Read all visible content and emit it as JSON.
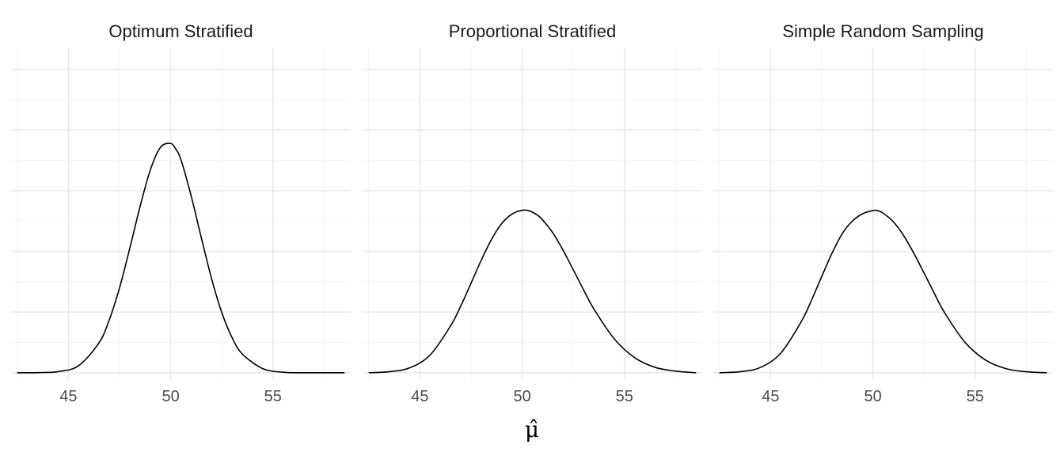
{
  "chart_data": {
    "type": "line",
    "facets": "horizontal",
    "xlabel": "μ̂",
    "x_ticks": [
      45,
      50,
      55
    ],
    "xlim": [
      42.2,
      58.8
    ],
    "ylim": [
      -0.006,
      0.268
    ],
    "y_gridlines": [
      0,
      0.05,
      0.1,
      0.15,
      0.2,
      0.25
    ],
    "y_tick_labels_shown": false,
    "grid": true,
    "curve_color": "#000000",
    "panels": [
      {
        "title": "Optimum Stratified",
        "x_range": [
          42.5,
          58.5
        ],
        "x": [
          42.5,
          43.5,
          44.5,
          45.5,
          46.5,
          47.0,
          47.5,
          48.0,
          48.5,
          49.0,
          49.5,
          50.0,
          50.25,
          50.5,
          51.0,
          51.5,
          52.0,
          52.5,
          53.0,
          53.5,
          54.5,
          55.5,
          56.5,
          57.5,
          58.5
        ],
        "y": [
          0.0,
          0.0001,
          0.0009,
          0.0058,
          0.0247,
          0.0436,
          0.0699,
          0.1024,
          0.1367,
          0.1668,
          0.1857,
          0.1889,
          0.1843,
          0.1757,
          0.1458,
          0.1111,
          0.0775,
          0.0495,
          0.029,
          0.0155,
          0.0034,
          0.0004,
          0.0,
          0.0,
          0.0
        ]
      },
      {
        "title": "Proportional Stratified",
        "x_range": [
          42.5,
          58.5
        ],
        "x": [
          42.5,
          43.5,
          44.5,
          45.5,
          46.5,
          47.0,
          47.5,
          48.0,
          48.5,
          49.0,
          49.5,
          50.0,
          50.35,
          50.75,
          51.0,
          51.5,
          52.0,
          52.5,
          53.0,
          53.5,
          54.5,
          55.5,
          56.5,
          57.5,
          58.5
        ],
        "y": [
          0.0,
          0.0008,
          0.004,
          0.0146,
          0.0386,
          0.055,
          0.0737,
          0.0927,
          0.1098,
          0.1229,
          0.1307,
          0.1339,
          0.1334,
          0.1298,
          0.1259,
          0.1152,
          0.1009,
          0.0848,
          0.0684,
          0.0527,
          0.0279,
          0.0124,
          0.0044,
          0.0013,
          0.0
        ]
      },
      {
        "title": "Simple Random Sampling",
        "x_range": [
          42.5,
          58.5
        ],
        "x": [
          42.5,
          43.5,
          44.5,
          45.5,
          46.5,
          47.0,
          47.5,
          48.0,
          48.5,
          49.0,
          49.5,
          50.0,
          50.2,
          50.5,
          51.0,
          51.5,
          52.0,
          52.5,
          53.0,
          53.5,
          54.5,
          55.5,
          56.5,
          57.5,
          58.5
        ],
        "y": [
          0.0,
          0.0008,
          0.0043,
          0.0162,
          0.0421,
          0.0597,
          0.0793,
          0.0984,
          0.1145,
          0.125,
          0.131,
          0.1336,
          0.1338,
          0.1315,
          0.1244,
          0.1131,
          0.0985,
          0.0822,
          0.0655,
          0.0496,
          0.0251,
          0.0105,
          0.0034,
          0.0008,
          0.0
        ]
      }
    ]
  }
}
